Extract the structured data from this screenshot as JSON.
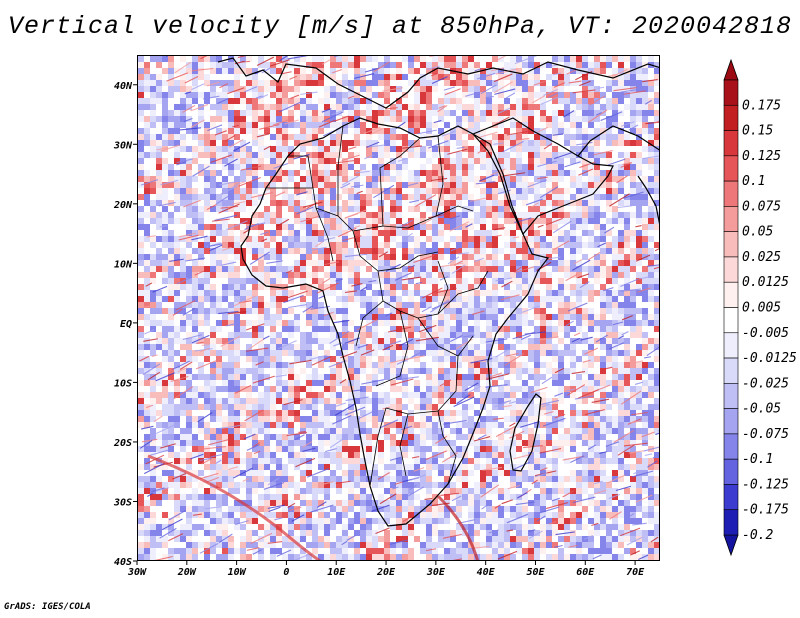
{
  "title": "Vertical velocity [m/s] at 850hPa, VT: 2020042818",
  "footer": "GrADS: IGES/COLA",
  "chart_data": {
    "type": "heatmap",
    "variable": "Vertical velocity",
    "units": "m/s",
    "level": "850hPa",
    "valid_time": "2020042818",
    "lon_range": [
      -30,
      75
    ],
    "lat_range": [
      -40,
      45
    ],
    "x_ticks": [
      {
        "value": -30,
        "label": "30W"
      },
      {
        "value": -20,
        "label": "20W"
      },
      {
        "value": -10,
        "label": "10W"
      },
      {
        "value": 0,
        "label": "0"
      },
      {
        "value": 10,
        "label": "10E"
      },
      {
        "value": 20,
        "label": "20E"
      },
      {
        "value": 30,
        "label": "30E"
      },
      {
        "value": 40,
        "label": "40E"
      },
      {
        "value": 50,
        "label": "50E"
      },
      {
        "value": 60,
        "label": "60E"
      },
      {
        "value": 70,
        "label": "70E"
      }
    ],
    "y_ticks": [
      {
        "value": 40,
        "label": "40N"
      },
      {
        "value": 30,
        "label": "30N"
      },
      {
        "value": 20,
        "label": "20N"
      },
      {
        "value": 10,
        "label": "10N"
      },
      {
        "value": 0,
        "label": "EQ"
      },
      {
        "value": -10,
        "label": "10S"
      },
      {
        "value": -20,
        "label": "20S"
      },
      {
        "value": -30,
        "label": "30S"
      },
      {
        "value": -40,
        "label": "40S"
      }
    ],
    "colorbar": [
      {
        "label": "0.175",
        "color": "#a8101a"
      },
      {
        "label": "0.15",
        "color": "#c21f23"
      },
      {
        "label": "0.125",
        "color": "#d8373b"
      },
      {
        "label": "0.1",
        "color": "#e65558"
      },
      {
        "label": "0.075",
        "color": "#ee7879"
      },
      {
        "label": "0.05",
        "color": "#f49c9b"
      },
      {
        "label": "0.025",
        "color": "#f8bcbb"
      },
      {
        "label": "0.0125",
        "color": "#fcd9d8"
      },
      {
        "label": "0.005",
        "color": "#fdf0ef"
      },
      {
        "label": "-0.005",
        "color": "#ffffff"
      },
      {
        "label": "-0.0125",
        "color": "#eeeefd"
      },
      {
        "label": "-0.025",
        "color": "#d9d9fa"
      },
      {
        "label": "-0.05",
        "color": "#bfbff6"
      },
      {
        "label": "-0.075",
        "color": "#a4a4f1"
      },
      {
        "label": "-0.1",
        "color": "#8484ea"
      },
      {
        "label": "-0.125",
        "color": "#6464e0"
      },
      {
        "label": "-0.175",
        "color": "#3c3cd0"
      },
      {
        "label": "-0.2",
        "color": "#1e1eb4"
      }
    ],
    "colorbar_top_arrow_color": "#9c0a14",
    "colorbar_bottom_arrow_color": "#1414a0"
  },
  "colors": {
    "coast": "#000000",
    "background": "#ffffff"
  }
}
